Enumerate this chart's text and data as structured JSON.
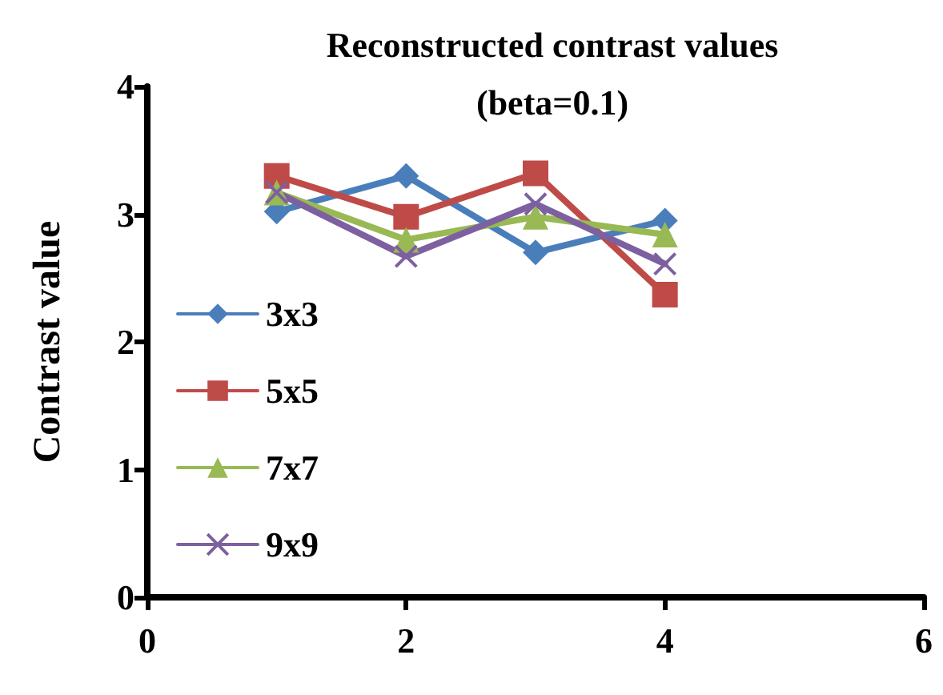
{
  "chart_data": {
    "type": "line",
    "title": "Reconstructed contrast values\n(beta=0.1)",
    "ylabel": "Contrast value",
    "x": [
      1,
      2,
      3,
      4
    ],
    "series": [
      {
        "name": "3x3",
        "color": "#4a7ebb",
        "marker": "diamond",
        "values": [
          3.02,
          3.3,
          2.7,
          2.95
        ]
      },
      {
        "name": "5x5",
        "color": "#be4b48",
        "marker": "square",
        "values": [
          3.3,
          2.98,
          3.32,
          2.37
        ]
      },
      {
        "name": "7x7",
        "color": "#98b954",
        "marker": "triangle",
        "values": [
          3.17,
          2.8,
          2.98,
          2.84
        ]
      },
      {
        "name": "9x9",
        "color": "#7d60a0",
        "marker": "cross",
        "values": [
          3.17,
          2.67,
          3.08,
          2.61
        ]
      }
    ],
    "xlim": [
      0,
      6
    ],
    "xticks": [
      0,
      2,
      4,
      6
    ],
    "ylim": [
      0,
      4
    ],
    "yticks": [
      0,
      1,
      2,
      3,
      4
    ],
    "grid": false,
    "legend": "left"
  }
}
